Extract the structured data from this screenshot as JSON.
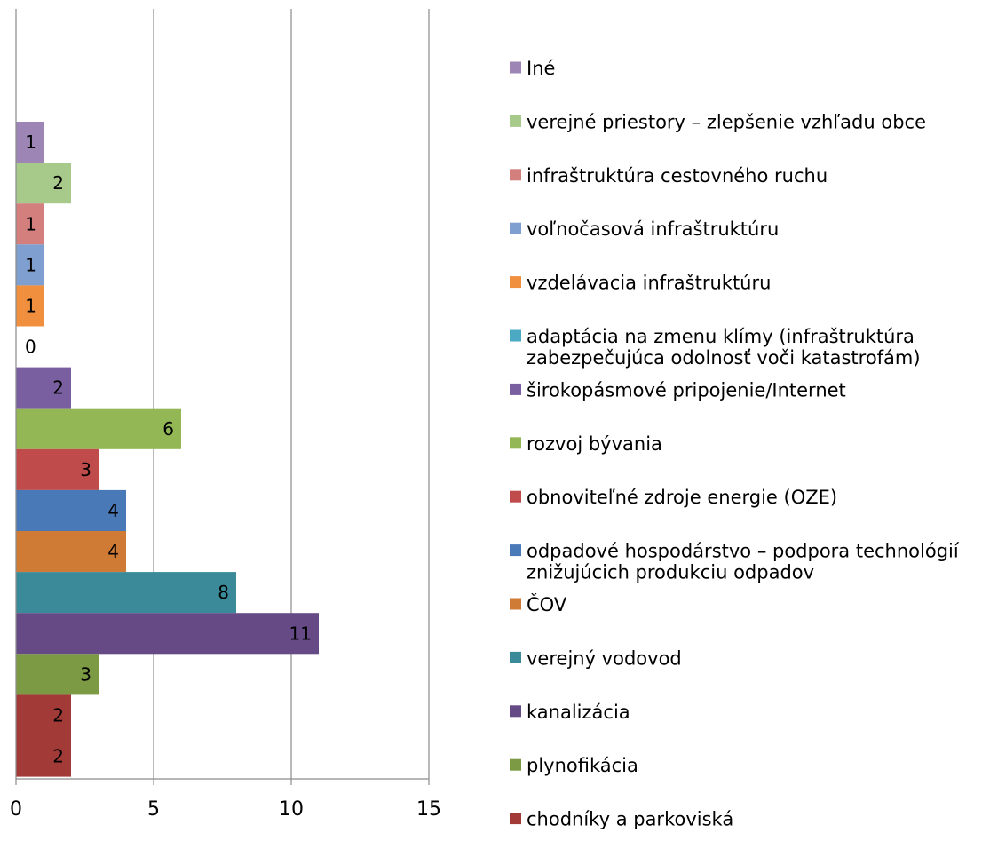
{
  "chart_data": {
    "type": "bar",
    "orientation": "horizontal",
    "grid": true,
    "legend_placement": "right",
    "xlim": [
      0,
      15
    ],
    "x_ticks": [
      "0",
      "5",
      "10",
      "15"
    ],
    "bars": [
      {
        "label": "Iné",
        "value": 1,
        "color": "#9d86b6"
      },
      {
        "label": "verejné priestory – zlepšenie vzhľadu obce",
        "value": 2,
        "color": "#a7c98a"
      },
      {
        "label": "infraštruktúra cestovného ruchu",
        "value": 1,
        "color": "#d27f7e"
      },
      {
        "label": "voľnočasová infraštruktúru",
        "value": 1,
        "color": "#7f9fd0"
      },
      {
        "label": "vzdelávacia infraštruktúru",
        "value": 1,
        "color": "#f0903f"
      },
      {
        "label": "adaptácia na zmenu klímy (infraštruktúra zabezpečujúca odolnosť voči katastrofám)",
        "value": 0,
        "color": "#4ba9c3"
      },
      {
        "label": "širokopásmové pripojenie/Internet",
        "value": 2,
        "color": "#7a5fa0"
      },
      {
        "label": "rozvoj bývania",
        "value": 6,
        "color": "#93b755"
      },
      {
        "label": "obnoviteľné zdroje energie (OZE)",
        "value": 3,
        "color": "#bf4c4a"
      },
      {
        "label": "odpadové hospodárstvo – podpora technológií znižujúcich produkciu odpadov",
        "value": 4,
        "color": "#4a79b8"
      },
      {
        "label": "ČOV",
        "value": 4,
        "color": "#cf7b35"
      },
      {
        "label": "verejný vodovod",
        "value": 8,
        "color": "#3a8a9a"
      },
      {
        "label": "kanalizácia",
        "value": 11,
        "color": "#654a86"
      },
      {
        "label": "plynofikácia",
        "value": 3,
        "color": "#7b9a43"
      },
      {
        "label": "chodníky a parkoviská",
        "value": 2,
        "color": "#a23a38"
      },
      {
        "label": "",
        "value": 2,
        "color": "#a23a38"
      }
    ],
    "legend_lines": [
      [
        "Iné"
      ],
      [
        "verejné priestory – zlepšenie vzhľadu obce"
      ],
      [
        "infraštruktúra cestovného ruchu"
      ],
      [
        "voľnočasová infraštruktúru"
      ],
      [
        "vzdelávacia infraštruktúru"
      ],
      [
        "adaptácia na zmenu klímy (infraštruktúra",
        "zabezpečujúca odolnosť voči katastrofám)"
      ],
      [
        "širokopásmové pripojenie/Internet"
      ],
      [
        "rozvoj bývania"
      ],
      [
        "obnoviteľné zdroje energie (OZE)"
      ],
      [
        "odpadové hospodárstvo – podpora technológií",
        "znižujúcich produkciu odpadov"
      ],
      [
        "ČOV"
      ],
      [
        "verejný vodovod"
      ],
      [
        "kanalizácia"
      ],
      [
        "plynofikácia"
      ],
      [
        "chodníky a parkoviská"
      ]
    ]
  }
}
